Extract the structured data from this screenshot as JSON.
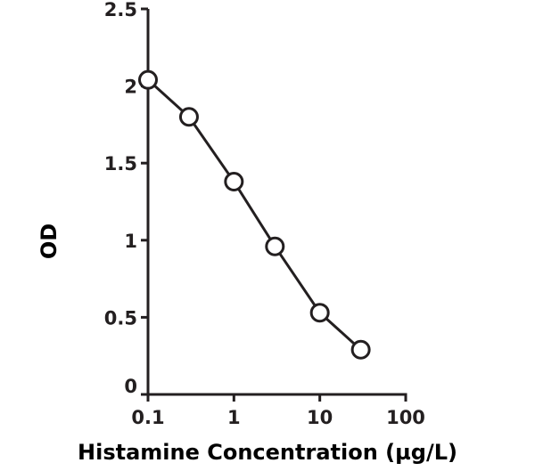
{
  "chart_data": {
    "type": "line",
    "title": "",
    "xlabel": "Histamine Concentration (µg/L)",
    "ylabel": "OD",
    "x_scale": "log",
    "xlim": [
      0.1,
      100
    ],
    "ylim": [
      0,
      2.5
    ],
    "x_ticks": [
      "0.1",
      "1",
      "10",
      "100"
    ],
    "x_tick_values": [
      0.1,
      1,
      10,
      100
    ],
    "y_ticks": [
      "0",
      "0.5",
      "1",
      "1.5",
      "2",
      "2.5"
    ],
    "y_tick_values": [
      0,
      0.5,
      1,
      1.5,
      2,
      2.5
    ],
    "grid": false,
    "legend": "none",
    "series": [
      {
        "marker": "open-circle",
        "color": "#231f20",
        "x": [
          0.1,
          0.3,
          1,
          3,
          10,
          30
        ],
        "y": [
          2.04,
          1.8,
          1.38,
          0.96,
          0.53,
          0.29
        ]
      }
    ]
  }
}
